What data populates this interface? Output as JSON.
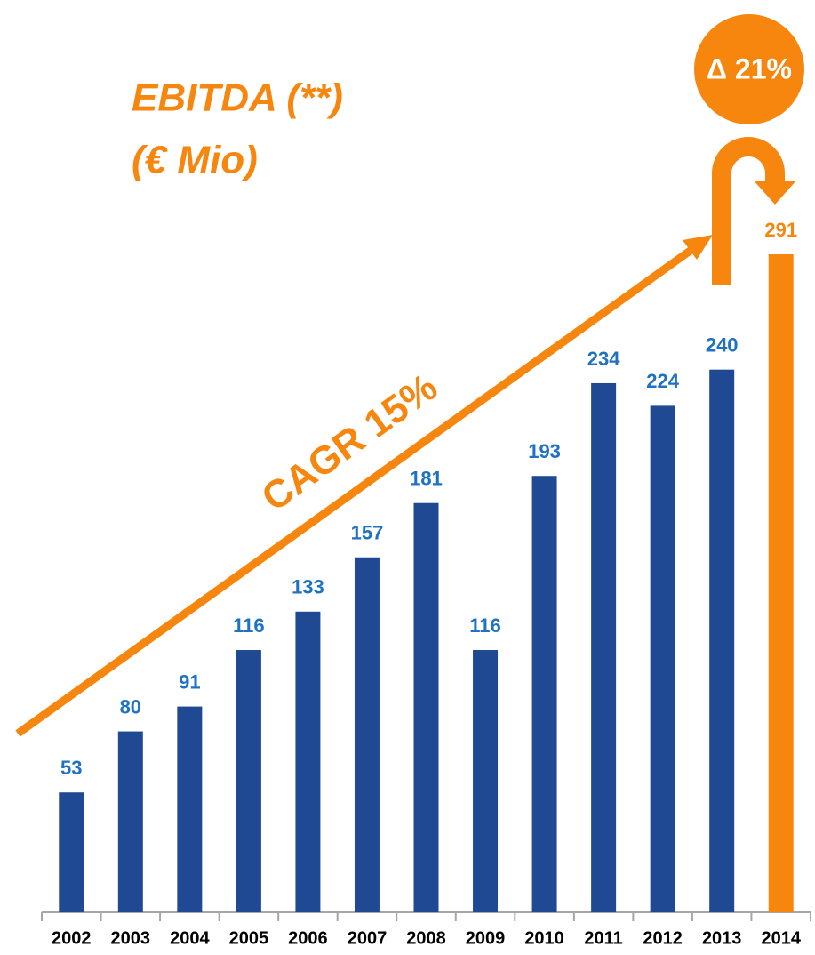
{
  "chart_data": {
    "type": "bar",
    "title": "EBITDA (**)",
    "subtitle": "(€ Mio)",
    "annotations": [
      "CAGR 15%",
      "Δ 21%"
    ],
    "categories": [
      "2002",
      "2003",
      "2004",
      "2005",
      "2006",
      "2007",
      "2008",
      "2009",
      "2010",
      "2011",
      "2012",
      "2013",
      "2014"
    ],
    "values": [
      53,
      80,
      91,
      116,
      133,
      157,
      181,
      116,
      193,
      234,
      224,
      240,
      291
    ],
    "colors": [
      "#1f4a93",
      "#1f4a93",
      "#1f4a93",
      "#1f4a93",
      "#1f4a93",
      "#1f4a93",
      "#1f4a93",
      "#1f4a93",
      "#1f4a93",
      "#1f4a93",
      "#1f4a93",
      "#1f4a93",
      "#f7860f"
    ],
    "label_colors": [
      "#1f72c2",
      "#1f72c2",
      "#1f72c2",
      "#1f72c2",
      "#1f72c2",
      "#1f72c2",
      "#1f72c2",
      "#1f72c2",
      "#1f72c2",
      "#1f72c2",
      "#1f72c2",
      "#1f72c2",
      "#f7860f"
    ]
  }
}
